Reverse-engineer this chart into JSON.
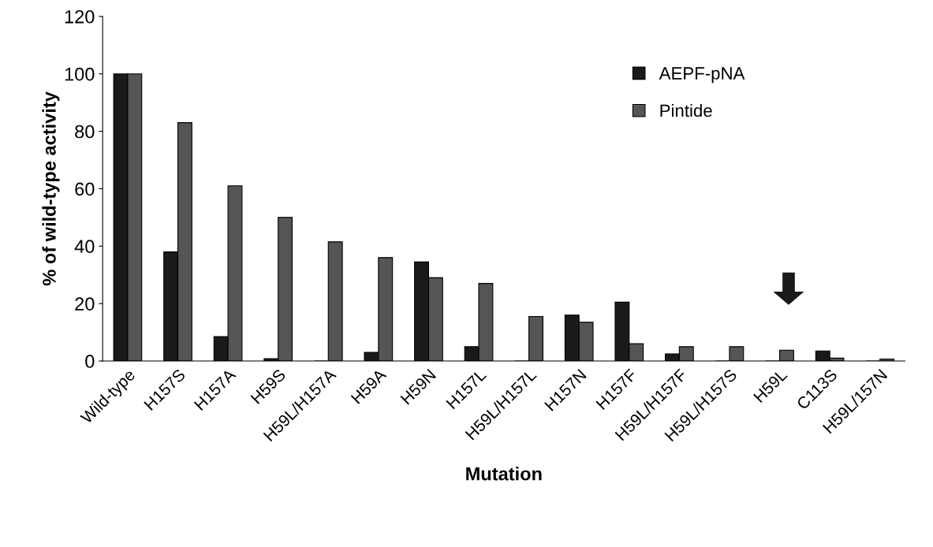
{
  "chart_data": {
    "type": "bar",
    "xlabel": "Mutation",
    "ylabel": "% of wild-type activity",
    "categories": [
      "Wild-type",
      "H157S",
      "H157A",
      "H59S",
      "H59L/H157A",
      "H59A",
      "H59N",
      "H157L",
      "H59L/H157L",
      "H157N",
      "H157F",
      "H59L/H157F",
      "H59L/H157S",
      "H59L",
      "C113S",
      "H59L/157N"
    ],
    "series": [
      {
        "name": "AEPF-pNA",
        "color": "#1a1a1a",
        "values": [
          100,
          38,
          8.5,
          0.8,
          0,
          3,
          34.5,
          5,
          0,
          16,
          20.5,
          2.5,
          0,
          0,
          3.5,
          0
        ]
      },
      {
        "name": "Pintide",
        "color": "#555555",
        "values": [
          100,
          83,
          61,
          50,
          41.5,
          36,
          29,
          27,
          15.5,
          13.5,
          6,
          5,
          5,
          3.8,
          1,
          0.7
        ]
      }
    ],
    "ylim": [
      0,
      120
    ],
    "yticks": [
      0,
      20,
      40,
      60,
      80,
      100,
      120
    ],
    "legend": "top right",
    "grid": false
  }
}
